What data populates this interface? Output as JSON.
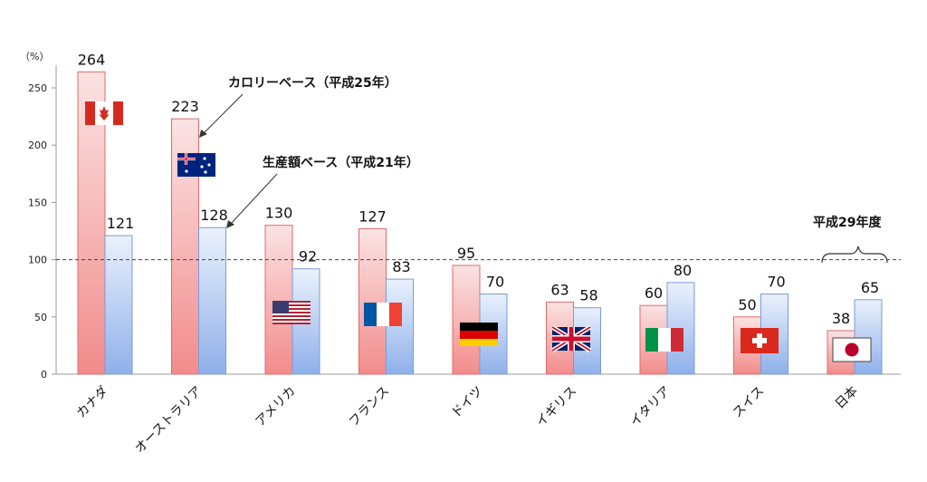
{
  "chart_data": {
    "type": "bar",
    "y_unit_label": "（%）",
    "ylim": [
      0,
      270
    ],
    "y_ticks": [
      0,
      50,
      100,
      150,
      200,
      250
    ],
    "categories": [
      "カナダ",
      "オーストラリア",
      "アメリカ",
      "フランス",
      "ドイツ",
      "イギリス",
      "イタリア",
      "スイス",
      "日本"
    ],
    "series": [
      {
        "name": "カロリーベース",
        "values": [
          264,
          223,
          130,
          127,
          95,
          63,
          60,
          50,
          38
        ]
      },
      {
        "name": "生産額ベース",
        "values": [
          121,
          128,
          92,
          83,
          70,
          58,
          80,
          70,
          65
        ]
      }
    ],
    "reference_line": 100,
    "annotations": {
      "calorie": "カロリーベース（平成25年）",
      "production": "生産額ベース（平成21年）",
      "japan_year": "平成29年度"
    },
    "flags": [
      "canada-flag",
      "australia-flag",
      "usa-flag",
      "france-flag",
      "germany-flag",
      "uk-flag",
      "italy-flag",
      "switzerland-flag",
      "japan-flag"
    ],
    "colors": {
      "calorie": "#f08080",
      "production": "#8fb4e8"
    }
  }
}
